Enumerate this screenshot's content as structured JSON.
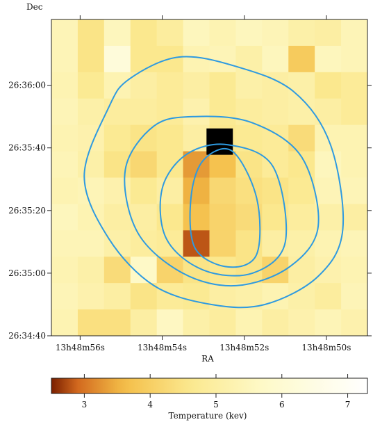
{
  "chart_data": {
    "type": "heatmap",
    "title": "",
    "xlabel": "RA",
    "ylabel": "Dec",
    "x_ticks": [
      "13h48m56s",
      "13h48m54s",
      "13h48m52s",
      "13h48m50s"
    ],
    "y_ticks": [
      "26:36:00",
      "26:35:40",
      "26:35:20",
      "26:35:00",
      "26:34:40"
    ],
    "colorbar": {
      "label": "Temperature (kev)",
      "ticks": [
        "3",
        "4",
        "5",
        "6",
        "7"
      ],
      "range": [
        2.5,
        7.3
      ],
      "stops": [
        {
          "value": 2.5,
          "color": "#7a1f00"
        },
        {
          "value": 2.9,
          "color": "#d2691e"
        },
        {
          "value": 3.6,
          "color": "#f4be48"
        },
        {
          "value": 4.6,
          "color": "#fbe88e"
        },
        {
          "value": 5.8,
          "color": "#fefacc"
        },
        {
          "value": 7.3,
          "color": "#ffffff"
        }
      ]
    },
    "grid_temperatures_kev": [
      [
        5.4,
        4.5,
        5.5,
        4.6,
        4.9,
        5.5,
        5.3,
        5.5,
        5.4,
        5.1,
        5.0,
        5.4
      ],
      [
        5.4,
        4.5,
        6.2,
        4.6,
        4.6,
        5.3,
        5.4,
        5.1,
        5.5,
        3.9,
        5.5,
        5.4
      ],
      [
        5.3,
        4.7,
        5.3,
        5.0,
        4.8,
        5.0,
        4.7,
        5.1,
        5.0,
        5.1,
        4.6,
        4.8
      ],
      [
        5.4,
        5.1,
        4.9,
        4.9,
        4.8,
        5.2,
        4.7,
        4.9,
        5.0,
        5.1,
        5.0,
        4.8
      ],
      [
        5.3,
        5.2,
        4.7,
        4.5,
        4.6,
        5.0,
        4.6,
        4.7,
        4.8,
        4.3,
        5.3,
        5.3
      ],
      [
        5.4,
        5.1,
        4.5,
        4.2,
        4.6,
        3.3,
        3.7,
        4.5,
        4.8,
        4.6,
        5.5,
        5.3
      ],
      [
        5.3,
        5.4,
        5.2,
        4.7,
        5.0,
        3.5,
        4.2,
        4.4,
        4.5,
        4.7,
        5.4,
        5.4
      ],
      [
        5.5,
        5.3,
        5.0,
        5.0,
        4.6,
        3.7,
        4.1,
        4.3,
        4.6,
        4.9,
        5.1,
        5.0
      ],
      [
        5.4,
        5.4,
        5.1,
        4.9,
        4.8,
        2.8,
        4.1,
        4.5,
        5.0,
        5.1,
        5.3,
        5.4
      ],
      [
        5.3,
        5.1,
        4.3,
        5.7,
        4.1,
        4.5,
        4.6,
        4.5,
        4.1,
        5.0,
        5.2,
        5.3
      ],
      [
        5.4,
        5.2,
        5.0,
        4.5,
        4.8,
        4.7,
        5.0,
        5.1,
        5.3,
        5.1,
        4.9,
        5.4
      ],
      [
        5.3,
        4.4,
        4.4,
        5.0,
        5.6,
        5.1,
        4.9,
        5.3,
        5.0,
        5.2,
        5.4,
        5.2
      ]
    ],
    "grid_range": {
      "ra_min_s": 49.0,
      "ra_max_s": 56.7,
      "dec_min": "26:34:40",
      "dec_max": "26:36:21"
    },
    "special_cells": [
      {
        "label": "very low temperature",
        "ra_s": 52.6,
        "dec": "26:35:42",
        "color": "#000000"
      }
    ],
    "contours": [
      {
        "level": 1,
        "points": [
          [
            54.8,
            "26:36:02"
          ],
          [
            53.6,
            "26:36:09"
          ],
          [
            52.2,
            "26:36:06"
          ],
          [
            50.8,
            "26:35:58"
          ],
          [
            49.9,
            "26:35:41"
          ],
          [
            49.6,
            "26:35:14"
          ],
          [
            50.2,
            "26:34:59"
          ],
          [
            51.5,
            "26:34:50"
          ],
          [
            52.8,
            "26:34:50"
          ],
          [
            54.2,
            "26:34:56"
          ],
          [
            55.3,
            "26:35:11"
          ],
          [
            55.9,
            "26:35:31"
          ],
          [
            55.3,
            "26:35:53"
          ]
        ]
      },
      {
        "level": 2,
        "points": [
          [
            54.2,
            "26:35:47"
          ],
          [
            53.2,
            "26:35:50"
          ],
          [
            51.8,
            "26:35:48"
          ],
          [
            50.6,
            "26:35:37"
          ],
          [
            50.2,
            "26:35:15"
          ],
          [
            50.9,
            "26:35:02"
          ],
          [
            52.2,
            "26:34:56"
          ],
          [
            53.5,
            "26:35:00"
          ],
          [
            54.6,
            "26:35:13"
          ],
          [
            54.9,
            "26:35:33"
          ]
        ]
      },
      {
        "level": 3,
        "points": [
          [
            53.4,
            "26:35:38"
          ],
          [
            52.4,
            "26:35:41"
          ],
          [
            51.3,
            "26:35:34"
          ],
          [
            51.0,
            "26:35:10"
          ],
          [
            51.8,
            "26:35:00"
          ],
          [
            53.0,
            "26:35:01"
          ],
          [
            53.9,
            "26:35:11"
          ],
          [
            54.0,
            "26:35:27"
          ]
        ]
      },
      {
        "level": 4,
        "points": [
          [
            53.0,
            "26:35:36"
          ],
          [
            52.3,
            "26:35:39"
          ],
          [
            51.7,
            "26:35:24"
          ],
          [
            51.7,
            "26:35:06"
          ],
          [
            52.4,
            "26:35:02"
          ],
          [
            53.2,
            "26:35:08"
          ],
          [
            53.3,
            "26:35:24"
          ]
        ]
      }
    ]
  }
}
